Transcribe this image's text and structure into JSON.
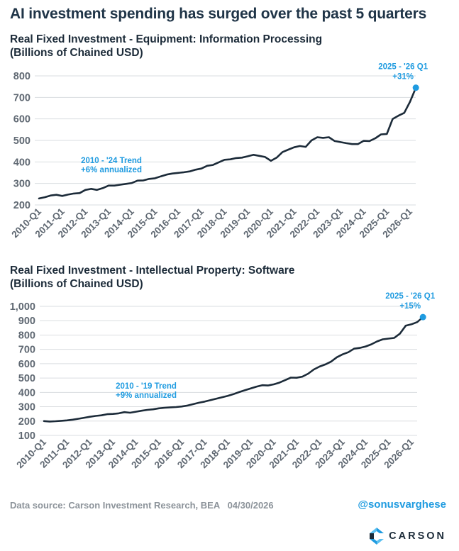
{
  "header": {
    "title": "AI investment spending has surged over the past 5 quarters"
  },
  "chart_data": [
    {
      "type": "line",
      "title": "Real Fixed Investment - Equipment: Information Processing",
      "subtitle": "(Billions of Chained USD)",
      "ylim": [
        200,
        800
      ],
      "yticks": [
        200,
        300,
        400,
        500,
        600,
        700,
        800
      ],
      "ytick_labels": [
        "200",
        "300",
        "400",
        "500",
        "600",
        "700",
        "800"
      ],
      "xtick_labels": [
        "2010-Q1",
        "2011-Q1",
        "2012-Q1",
        "2013-Q1",
        "2014-Q1",
        "2015-Q1",
        "2016-Q1",
        "2017-Q1",
        "2018-Q1",
        "2019-Q1",
        "2020-Q1",
        "2021-Q1",
        "2022-Q1",
        "2023-Q1",
        "2024-Q1",
        "2025-Q1",
        "2026-Q1"
      ],
      "grid": "horizontal",
      "line_color": "#1c2b39",
      "series": [
        {
          "values": [
            230,
            236,
            244,
            247,
            242,
            248,
            253,
            255,
            270,
            275,
            270,
            278,
            290,
            290,
            294,
            298,
            302,
            313,
            314,
            321,
            324,
            333,
            341,
            346,
            349,
            352,
            356,
            364,
            369,
            382,
            386,
            398,
            410,
            412,
            418,
            420,
            426,
            433,
            428,
            423,
            405,
            420,
            446,
            457,
            468,
            474,
            470,
            500,
            515,
            512,
            515,
            497,
            492,
            487,
            483,
            483,
            498,
            497,
            510,
            528,
            530,
            600,
            615,
            628,
            680,
            745
          ]
        }
      ],
      "trend_annotation": {
        "line1": "2010 - '24 Trend",
        "line2": "+6% annualized"
      },
      "end_annotation": {
        "line1": "2025 - '26 Q1",
        "line2": "+31%",
        "value": 745
      }
    },
    {
      "type": "line",
      "title": "Real Fixed Investment - Intellectual Property: Software",
      "subtitle": "(Billions of Chained USD)",
      "ylim": [
        100,
        1000
      ],
      "yticks": [
        100,
        200,
        300,
        400,
        500,
        600,
        700,
        800,
        900,
        1000
      ],
      "ytick_labels": [
        "100",
        "200",
        "300",
        "400",
        "500",
        "600",
        "700",
        "800",
        "900",
        "1,000"
      ],
      "xtick_labels": [
        "2010-Q1",
        "2011-Q1",
        "2012-Q1",
        "2013-Q1",
        "2014-Q1",
        "2015-Q1",
        "2016-Q1",
        "2017-Q1",
        "2018-Q1",
        "2019-Q1",
        "2020-Q1",
        "2021-Q1",
        "2022-Q1",
        "2023-Q1",
        "2024-Q1",
        "2025-Q1",
        "2026-Q1"
      ],
      "grid": "horizontal",
      "line_color": "#1c2b39",
      "series": [
        {
          "values": [
            200,
            197,
            199,
            202,
            205,
            210,
            216,
            223,
            230,
            236,
            240,
            248,
            250,
            254,
            262,
            258,
            265,
            272,
            278,
            282,
            289,
            293,
            296,
            298,
            302,
            308,
            318,
            328,
            336,
            346,
            356,
            366,
            376,
            388,
            402,
            415,
            428,
            440,
            450,
            448,
            456,
            468,
            485,
            503,
            502,
            510,
            530,
            560,
            580,
            595,
            615,
            645,
            665,
            680,
            705,
            710,
            720,
            735,
            755,
            770,
            775,
            780,
            810,
            865,
            875,
            890,
            925
          ]
        }
      ],
      "trend_annotation": {
        "line1": "2010 - '19 Trend",
        "line2": "+9% annualized"
      },
      "end_annotation": {
        "line1": "2025 - '26 Q1",
        "line2": "+15%",
        "value": 925
      }
    }
  ],
  "footer": {
    "source": "Data source: Carson Investment Research, BEA   04/30/2026",
    "handle": "@sonusvarghese",
    "logo_text": "CARSON",
    "logo_icon": "carson-logo-icon"
  },
  "colors": {
    "accent": "#1f9be0",
    "line": "#1c2b39",
    "grid": "#dadde0",
    "muted": "#8c939a"
  }
}
